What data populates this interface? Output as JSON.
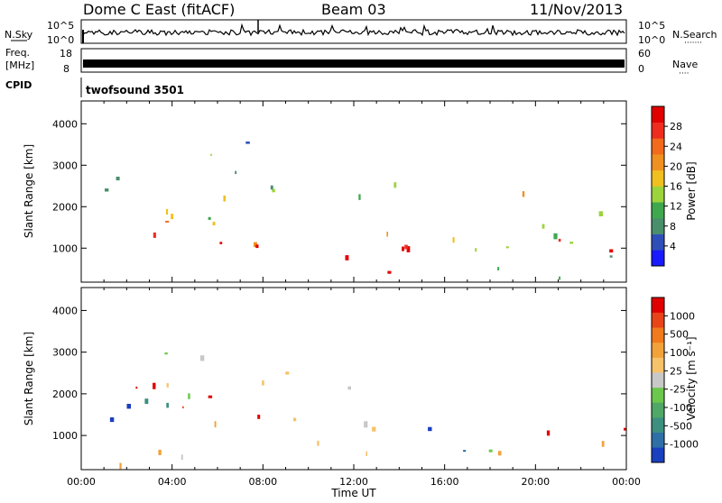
{
  "header": {
    "station": "Dome C East (fitACF)",
    "beam": "Beam 03",
    "date": "11/Nov/2013"
  },
  "status_panels": {
    "nsky_label": "N.Sky",
    "nsearch_label": "N.Search",
    "nsearch_dots": "·······",
    "nsky_ticks": [
      "10^5",
      "10^0"
    ],
    "nsearch_ticks": [
      "10^5",
      "10^0"
    ],
    "freq_label": "Freq.",
    "freq_unit": "[MHz]",
    "freq_ticks": [
      "18",
      "8"
    ],
    "nave_label": "Nave",
    "nave_dots": "····",
    "nave_ticks": [
      "60",
      "0"
    ],
    "cpid_label": "CPID",
    "cpid_value": "twofsound 3501"
  },
  "chart_data": [
    {
      "type": "heatmap",
      "title": "",
      "xlabel": "Time UT",
      "ylabel": "Slant Range [km]",
      "x_ticks": [
        "00:00",
        "04:00",
        "08:00",
        "12:00",
        "16:00",
        "20:00",
        "00:00"
      ],
      "xlim_hours": [
        0,
        24
      ],
      "y_ticks": [
        1000,
        2000,
        3000,
        4000
      ],
      "ylim": [
        180,
        4550
      ],
      "colorbar": {
        "label": "Power [dB]",
        "ticks": [
          "4",
          "8",
          "12",
          "16",
          "20",
          "24",
          "28"
        ],
        "colors": [
          "#1a1aff",
          "#2f4fb8",
          "#4a8f6c",
          "#3fa84f",
          "#9cd43c",
          "#f0c020",
          "#f09020",
          "#f26a1c",
          "#ef2d1f",
          "#e00000"
        ]
      },
      "regions": [
        {
          "t0": 0.2,
          "t1": 14.4,
          "r0": 240,
          "r1": 1500,
          "level": 0.85
        },
        {
          "t0": 0.8,
          "t1": 8.5,
          "r0": 1200,
          "r1": 2300,
          "level": 0.55
        },
        {
          "t0": 5.0,
          "t1": 9.5,
          "r0": 1500,
          "r1": 3600,
          "level": 0.3
        },
        {
          "t0": 0.5,
          "t1": 14.0,
          "r0": 2200,
          "r1": 2900,
          "level": 0.2
        },
        {
          "t0": 14.8,
          "t1": 24.0,
          "r0": 300,
          "r1": 2600,
          "level": 0.45
        },
        {
          "t0": 18.5,
          "t1": 23.5,
          "r0": 700,
          "r1": 1500,
          "level": 0.8
        }
      ]
    },
    {
      "type": "heatmap",
      "title": "",
      "xlabel": "Time UT",
      "ylabel": "Slant Range [km]",
      "x_ticks": [
        "00:00",
        "04:00",
        "08:00",
        "12:00",
        "16:00",
        "20:00",
        "00:00"
      ],
      "xlim_hours": [
        0,
        24
      ],
      "y_ticks": [
        1000,
        2000,
        3000,
        4000
      ],
      "ylim": [
        180,
        4550
      ],
      "colorbar": {
        "label": "Velocity [m s⁻¹]",
        "ticks": [
          "1000",
          "500",
          "100",
          "25",
          "-25",
          "-100",
          "-500",
          "-1000"
        ],
        "colors": [
          "#1a3fbf",
          "#2f6fa8",
          "#3d8f80",
          "#4fa866",
          "#6cc84c",
          "#c8c8c8",
          "#f6c26a",
          "#f2a23a",
          "#f07a1c",
          "#e84418",
          "#e00000"
        ]
      },
      "regions": [
        {
          "t0": 0.2,
          "t1": 3.0,
          "r0": 400,
          "r1": 2100,
          "level": 0.15
        },
        {
          "t0": 3.0,
          "t1": 9.0,
          "r0": 1300,
          "r1": 3300,
          "level": 0.5
        },
        {
          "t0": 2.0,
          "t1": 14.4,
          "r0": 300,
          "r1": 2400,
          "level": 0.75
        },
        {
          "t0": 0.3,
          "t1": 5.0,
          "r0": 200,
          "r1": 700,
          "level": 0.65
        },
        {
          "t0": 14.8,
          "t1": 18.0,
          "r0": 500,
          "r1": 2000,
          "level": 0.2
        },
        {
          "t0": 18.0,
          "t1": 24.0,
          "r0": 600,
          "r1": 1800,
          "level": 0.85
        }
      ]
    }
  ]
}
